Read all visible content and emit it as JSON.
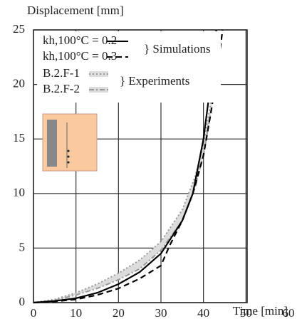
{
  "chart_data": {
    "type": "line",
    "ylabel": "Displacement [mm]",
    "xlabel": "Time [min]",
    "xlim": [
      0,
      60
    ],
    "ylim": [
      0,
      25
    ],
    "xticks": [
      0,
      10,
      20,
      30,
      40,
      50,
      60
    ],
    "yticks": [
      0,
      5,
      10,
      15,
      20,
      25
    ],
    "grid": true,
    "annotations": [
      "} Simulations",
      "} Experiments"
    ],
    "series": [
      {
        "name": "kh,100°C = 0.2",
        "color": "#000000",
        "style": "solid",
        "x": [
          0,
          5,
          10,
          15,
          20,
          25,
          30,
          35,
          37.5,
          40,
          42,
          43
        ],
        "values": [
          0,
          0.15,
          0.4,
          0.9,
          1.7,
          2.8,
          4.5,
          7.5,
          10,
          15,
          21,
          25
        ]
      },
      {
        "name": "kh,100°C = 0.3",
        "color": "#000000",
        "style": "dashed",
        "x": [
          0,
          5,
          10,
          15,
          20,
          25,
          30,
          32,
          35,
          37.5,
          40,
          42,
          43.5,
          44.5
        ],
        "values": [
          0,
          0.1,
          0.3,
          0.7,
          1.3,
          2.2,
          3.4,
          5.2,
          7.5,
          10,
          13.5,
          18,
          22,
          25
        ]
      },
      {
        "name": "B.2.F-1",
        "color": "#999999",
        "style": "dotted",
        "x": [
          0,
          5,
          10,
          15,
          20,
          25,
          30,
          35,
          38,
          40,
          42
        ],
        "values": [
          0,
          0.3,
          0.9,
          1.7,
          2.7,
          3.9,
          5.6,
          8.5,
          11.5,
          14.5,
          19
        ]
      },
      {
        "name": "B.2.F-2",
        "color": "#999999",
        "style": "dashdot",
        "x": [
          0,
          5,
          10,
          15,
          20,
          25,
          30,
          35,
          38,
          40,
          42
        ],
        "values": [
          0,
          0.2,
          0.7,
          1.3,
          2.1,
          3.1,
          4.8,
          7.5,
          10.5,
          13.5,
          18
        ]
      }
    ]
  }
}
